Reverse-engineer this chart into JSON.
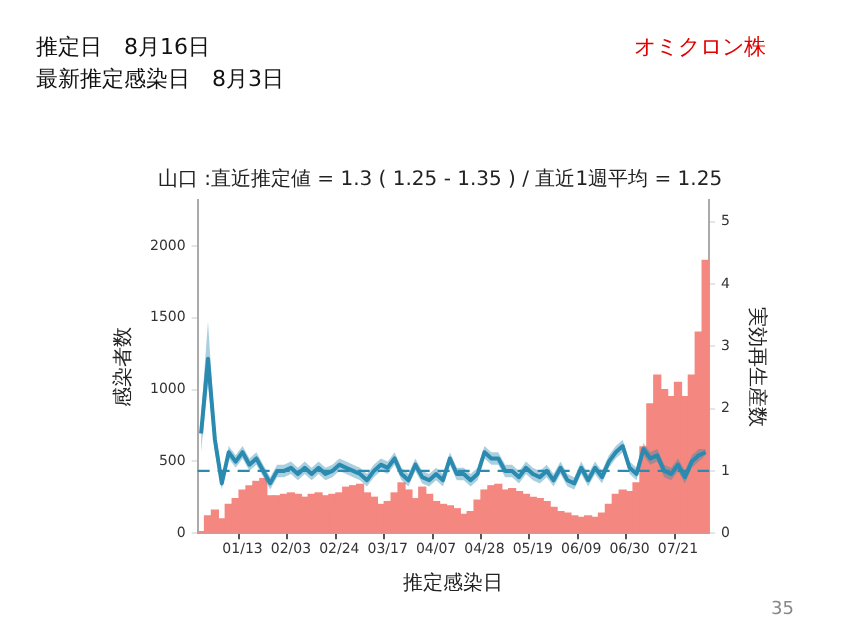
{
  "chart_data": {
    "type": "bar",
    "title": "山口 :直近推定値 = 1.3 ( 1.25 - 1.35 ) / 直近1週平均 = 1.25",
    "xlabel": "推定感染日",
    "ylabel": "感染者数",
    "y2label": "実効再生産数",
    "annotations": [
      "推定日　8月16日",
      "最新推定感染日　8月3日",
      "オミクロン株",
      "35"
    ],
    "categories": [
      null,
      null,
      null,
      null,
      null,
      null,
      "01/13",
      null,
      null,
      null,
      null,
      null,
      null,
      "02/03",
      null,
      null,
      null,
      null,
      null,
      null,
      "02/24",
      null,
      null,
      null,
      null,
      null,
      null,
      "03/17",
      null,
      null,
      null,
      null,
      null,
      null,
      "04/07",
      null,
      null,
      null,
      null,
      null,
      null,
      "04/28",
      null,
      null,
      null,
      null,
      null,
      null,
      "05/19",
      null,
      null,
      null,
      null,
      null,
      null,
      "06/09",
      null,
      null,
      null,
      null,
      null,
      null,
      "06/30",
      null,
      null,
      null,
      null,
      null,
      null,
      "07/21",
      null,
      null,
      null,
      null
    ],
    "series": [
      {
        "color": "#f4877f",
        "values": [
          10,
          120,
          160,
          100,
          200,
          240,
          300,
          330,
          360,
          380,
          260,
          260,
          270,
          280,
          270,
          250,
          270,
          280,
          260,
          270,
          280,
          320,
          330,
          340,
          280,
          250,
          200,
          220,
          280,
          350,
          300,
          240,
          320,
          270,
          220,
          200,
          190,
          170,
          130,
          150,
          230,
          300,
          330,
          340,
          300,
          310,
          290,
          270,
          250,
          240,
          220,
          180,
          150,
          140,
          120,
          110,
          120,
          110,
          140,
          200,
          270,
          300,
          290,
          350,
          600,
          900,
          1100,
          1000,
          950,
          1050,
          950,
          1100,
          1400,
          1900
        ]
      },
      {
        "type": "line",
        "axis": "y2",
        "color": "#2a8ab0",
        "values": [
          1.6,
          2.8,
          1.5,
          0.8,
          1.3,
          1.15,
          1.3,
          1.1,
          1.2,
          1.0,
          0.8,
          1.0,
          1.0,
          1.05,
          0.95,
          1.05,
          0.95,
          1.05,
          0.95,
          1.0,
          1.1,
          1.05,
          1.0,
          0.95,
          0.85,
          1.0,
          1.1,
          1.05,
          1.2,
          0.95,
          0.85,
          1.1,
          0.9,
          0.85,
          0.95,
          0.85,
          1.2,
          0.95,
          0.95,
          0.85,
          0.95,
          1.3,
          1.2,
          1.2,
          1.0,
          1.0,
          0.9,
          1.05,
          0.95,
          0.9,
          1.0,
          0.85,
          1.05,
          0.85,
          0.8,
          1.05,
          0.85,
          1.05,
          0.9,
          1.15,
          1.3,
          1.4,
          1.05,
          0.95,
          1.35,
          1.2,
          1.25,
          1.0,
          0.95,
          1.1,
          0.9,
          1.15,
          1.25,
          1.3
        ],
        "lower": [
          1.3,
          2.4,
          1.3,
          0.7,
          1.2,
          1.05,
          1.2,
          1.0,
          1.1,
          0.9,
          0.7,
          0.9,
          0.9,
          0.95,
          0.85,
          0.95,
          0.85,
          0.95,
          0.85,
          0.9,
          1.0,
          0.95,
          0.9,
          0.85,
          0.75,
          0.9,
          1.0,
          0.95,
          1.1,
          0.85,
          0.75,
          1.0,
          0.8,
          0.75,
          0.85,
          0.75,
          1.1,
          0.85,
          0.85,
          0.75,
          0.85,
          1.2,
          1.1,
          1.1,
          0.9,
          0.9,
          0.8,
          0.95,
          0.85,
          0.8,
          0.9,
          0.75,
          0.95,
          0.75,
          0.7,
          0.95,
          0.75,
          0.95,
          0.8,
          1.05,
          1.2,
          1.3,
          0.95,
          0.85,
          1.25,
          1.1,
          1.15,
          0.9,
          0.85,
          1.0,
          0.8,
          1.05,
          1.15,
          1.25
        ],
        "upper": [
          1.9,
          3.4,
          1.7,
          0.9,
          1.4,
          1.25,
          1.4,
          1.2,
          1.3,
          1.1,
          0.9,
          1.1,
          1.1,
          1.15,
          1.05,
          1.15,
          1.05,
          1.15,
          1.05,
          1.1,
          1.2,
          1.15,
          1.1,
          1.05,
          0.95,
          1.1,
          1.2,
          1.15,
          1.3,
          1.05,
          0.95,
          1.2,
          1.0,
          0.95,
          1.05,
          0.95,
          1.3,
          1.05,
          1.05,
          0.95,
          1.05,
          1.4,
          1.3,
          1.3,
          1.1,
          1.1,
          1.0,
          1.15,
          1.05,
          1.0,
          1.1,
          0.95,
          1.15,
          0.95,
          0.9,
          1.15,
          0.95,
          1.15,
          1.0,
          1.25,
          1.4,
          1.5,
          1.15,
          1.05,
          1.45,
          1.3,
          1.35,
          1.1,
          1.05,
          1.2,
          1.0,
          1.25,
          1.35,
          1.35
        ]
      }
    ],
    "ylim": [
      0,
      2320
    ],
    "yticks": [
      0,
      500,
      1000,
      1500,
      2000
    ],
    "y2lim": [
      0,
      5.35
    ],
    "y2ticks": [
      0,
      1,
      2,
      3,
      4,
      5
    ],
    "ref_lines": [
      {
        "axis": "y2",
        "value": 1,
        "color": "#2a8ab0",
        "line_style": "dashed"
      }
    ],
    "marker": "none",
    "legend": false,
    "grid": false
  }
}
